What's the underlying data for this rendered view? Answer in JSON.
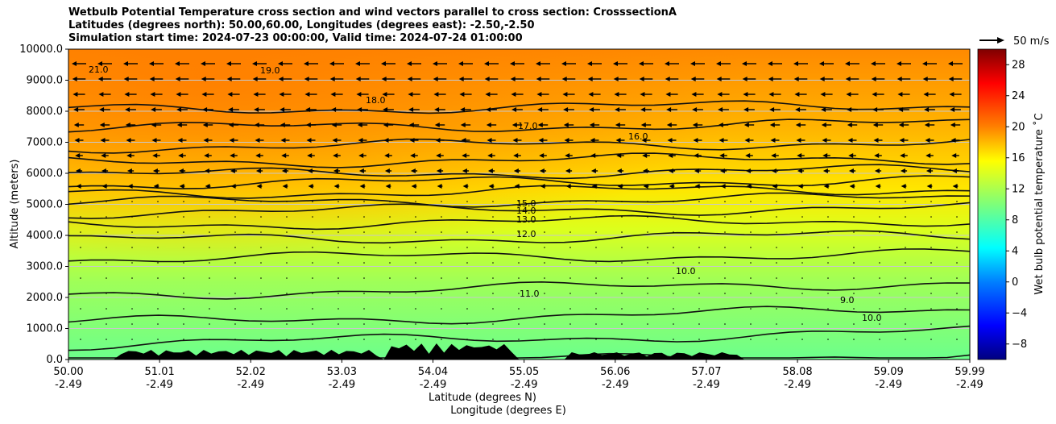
{
  "chart_data": {
    "type": "contour",
    "title": [
      "Wetbulb Potential Temperature cross section and wind vectors parallel to cross section: CrosssectionA",
      "Latitudes (degrees north): 50.00,60.00, Longitudes (degrees east): -2.50,-2.50",
      "Simulation start time: 2024-07-23 00:00:00, Valid time: 2024-07-24 01:00:00"
    ],
    "xlabel": "Latitude (degrees N)",
    "xlabel2": "Longitude (degrees E)",
    "ylabel": "Altitude (meters)",
    "ylim": [
      0,
      10000
    ],
    "xlim": [
      50.0,
      59.99
    ],
    "yticks": [
      "0.0",
      "1000.0",
      "2000.0",
      "3000.0",
      "4000.0",
      "5000.0",
      "6000.0",
      "7000.0",
      "8000.0",
      "9000.0",
      "10000.0"
    ],
    "xticks": [
      {
        "lat": "50.00",
        "lon": "-2.49"
      },
      {
        "lat": "51.01",
        "lon": "-2.49"
      },
      {
        "lat": "52.02",
        "lon": "-2.49"
      },
      {
        "lat": "53.03",
        "lon": "-2.49"
      },
      {
        "lat": "54.04",
        "lon": "-2.49"
      },
      {
        "lat": "55.05",
        "lon": "-2.49"
      },
      {
        "lat": "56.06",
        "lon": "-2.49"
      },
      {
        "lat": "57.07",
        "lon": "-2.49"
      },
      {
        "lat": "58.08",
        "lon": "-2.49"
      },
      {
        "lat": "59.09",
        "lon": "-2.49"
      },
      {
        "lat": "59.99",
        "lon": "-2.49"
      }
    ],
    "colorbar": {
      "label": "Wet bulb potential temperature ˚C",
      "ticks": [
        "−8",
        "−4",
        "0",
        "4",
        "8",
        "12",
        "16",
        "20",
        "24",
        "28"
      ],
      "range": [
        -10,
        30
      ],
      "colormap": "jet"
    },
    "quiver_key": "50 m/s",
    "contour_labels": [
      "21.0",
      "19.0",
      "18.0",
      "17.0",
      "16.0",
      "15.0",
      "14.0",
      "13.0",
      "12.0",
      "11.0",
      "10.0",
      "9.0"
    ],
    "grid": true
  }
}
